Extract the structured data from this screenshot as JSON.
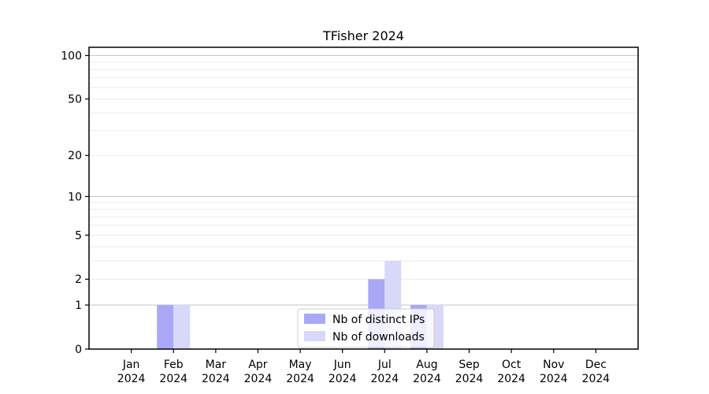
{
  "figure": {
    "background": "#ffffff"
  },
  "chart_data": {
    "type": "bar",
    "title": "TFisher 2024",
    "categories": [
      "Jan",
      "Feb",
      "Mar",
      "Apr",
      "May",
      "Jun",
      "Jul",
      "Aug",
      "Sep",
      "Oct",
      "Nov",
      "Dec"
    ],
    "year_label": "2024",
    "series": [
      {
        "name": "Nb of distinct IPs",
        "color": "#a8a8f7",
        "values": [
          0,
          1,
          0,
          0,
          0,
          0,
          2,
          1,
          0,
          0,
          0,
          0
        ]
      },
      {
        "name": "Nb of downloads",
        "color": "#d8d8f8",
        "values": [
          0,
          1,
          0,
          0,
          0,
          0,
          3,
          1,
          0,
          0,
          0,
          0
        ]
      }
    ],
    "xlabel": "",
    "ylabel": "",
    "yscale": "log1p",
    "ylim": [
      0,
      114
    ],
    "yticks": [
      0,
      1,
      2,
      5,
      10,
      20,
      50,
      100
    ],
    "minor_gridlines": [
      2,
      3,
      4,
      5,
      6,
      7,
      8,
      9,
      20,
      30,
      40,
      50,
      60,
      70,
      80,
      90
    ],
    "major_gridlines": [
      1,
      10,
      100
    ],
    "grid": true,
    "legend": {
      "position": "lower center",
      "entries": [
        "Nb of distinct IPs",
        "Nb of downloads"
      ]
    }
  },
  "colors": {
    "spine": "#000000",
    "tick": "#000000",
    "text": "#000000",
    "minor_grid": "#ebebeb",
    "major_grid": "#c9c9c9",
    "legend_border": "#cccccc",
    "legend_bg_rgba": "rgba(255,255,255,0.8)"
  }
}
